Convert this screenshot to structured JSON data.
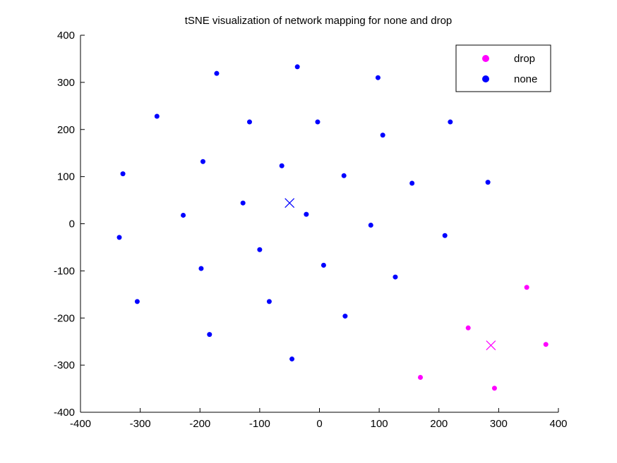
{
  "chart_data": {
    "type": "scatter",
    "title": "tSNE visualization of network mapping for none and drop",
    "xlabel": "",
    "ylabel": "",
    "xlim": [
      -400,
      400
    ],
    "ylim": [
      -400,
      400
    ],
    "xticks": [
      -400,
      -300,
      -200,
      -100,
      0,
      100,
      200,
      300,
      400
    ],
    "yticks": [
      -400,
      -300,
      -200,
      -100,
      0,
      100,
      200,
      300,
      400
    ],
    "grid": false,
    "legend_position": "top-right",
    "series": [
      {
        "name": "drop",
        "color": "#ff00ff",
        "points": [
          [
            347,
            -135
          ],
          [
            379,
            -256
          ],
          [
            249,
            -221
          ],
          [
            293,
            -349
          ],
          [
            169,
            -326
          ]
        ],
        "centroid": [
          287,
          -258
        ]
      },
      {
        "name": "none",
        "color": "#0000ff",
        "points": [
          [
            -172,
            319
          ],
          [
            -37,
            333
          ],
          [
            98,
            310
          ],
          [
            -272,
            228
          ],
          [
            -117,
            216
          ],
          [
            -3,
            216
          ],
          [
            219,
            216
          ],
          [
            106,
            188
          ],
          [
            -195,
            132
          ],
          [
            -329,
            106
          ],
          [
            -63,
            123
          ],
          [
            41,
            102
          ],
          [
            155,
            86
          ],
          [
            282,
            88
          ],
          [
            -128,
            44
          ],
          [
            -228,
            18
          ],
          [
            -22,
            20
          ],
          [
            86,
            -3
          ],
          [
            210,
            -25
          ],
          [
            -335,
            -29
          ],
          [
            -100,
            -55
          ],
          [
            -198,
            -95
          ],
          [
            7,
            -88
          ],
          [
            127,
            -113
          ],
          [
            -305,
            -165
          ],
          [
            -84,
            -165
          ],
          [
            43,
            -196
          ],
          [
            -184,
            -235
          ],
          [
            -46,
            -287
          ]
        ],
        "centroid": [
          -50,
          44
        ]
      }
    ]
  }
}
